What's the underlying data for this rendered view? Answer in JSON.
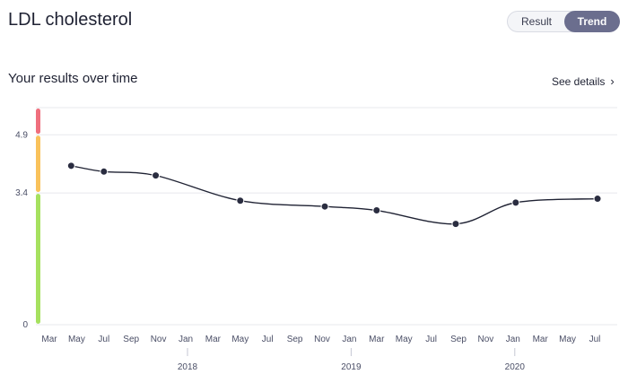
{
  "header": {
    "title": "LDL cholesterol",
    "tabs": [
      {
        "label": "Result",
        "active": false
      },
      {
        "label": "Trend",
        "active": true
      }
    ]
  },
  "section": {
    "subtitle": "Your results over time",
    "details_label": "See details"
  },
  "colors": {
    "accent": "#6b6e8e",
    "range_high": "#ef6f7d",
    "range_borderline": "#f9c25b",
    "range_normal": "#a6e15f",
    "line": "#1f2233"
  },
  "chart_data": {
    "type": "line",
    "ylim": [
      0,
      5.6
    ],
    "y_ticks": [
      {
        "label": "0",
        "value": 0
      },
      {
        "label": "3.4",
        "value": 3.4
      },
      {
        "label": "4.9",
        "value": 4.9
      }
    ],
    "ranges": [
      {
        "from": 0,
        "to": 3.4,
        "color": "#a6e15f"
      },
      {
        "from": 3.4,
        "to": 4.9,
        "color": "#f9c25b"
      },
      {
        "from": 4.9,
        "to": 5.6,
        "color": "#ef6f7d"
      }
    ],
    "x_tick_labels": [
      "Mar",
      "May",
      "Jul",
      "Sep",
      "Nov",
      "Jan",
      "Mar",
      "May",
      "Jul",
      "Sep",
      "Nov",
      "Jan",
      "Mar",
      "May",
      "Jul",
      "Sep",
      "Nov",
      "Jan",
      "Mar",
      "May",
      "Jul"
    ],
    "year_labels": [
      {
        "label": "2018",
        "at_tick": 5
      },
      {
        "label": "2019",
        "at_tick": 11
      },
      {
        "label": "2020",
        "at_tick": 17
      }
    ],
    "series": [
      {
        "points": [
          {
            "x": 0.8,
            "y": 4.1
          },
          {
            "x": 2.0,
            "y": 3.95
          },
          {
            "x": 3.9,
            "y": 3.85
          },
          {
            "x": 7.0,
            "y": 3.2
          },
          {
            "x": 10.1,
            "y": 3.05
          },
          {
            "x": 12.0,
            "y": 2.95
          },
          {
            "x": 14.9,
            "y": 2.6
          },
          {
            "x": 17.1,
            "y": 3.15
          },
          {
            "x": 20.1,
            "y": 3.25
          }
        ]
      }
    ]
  }
}
